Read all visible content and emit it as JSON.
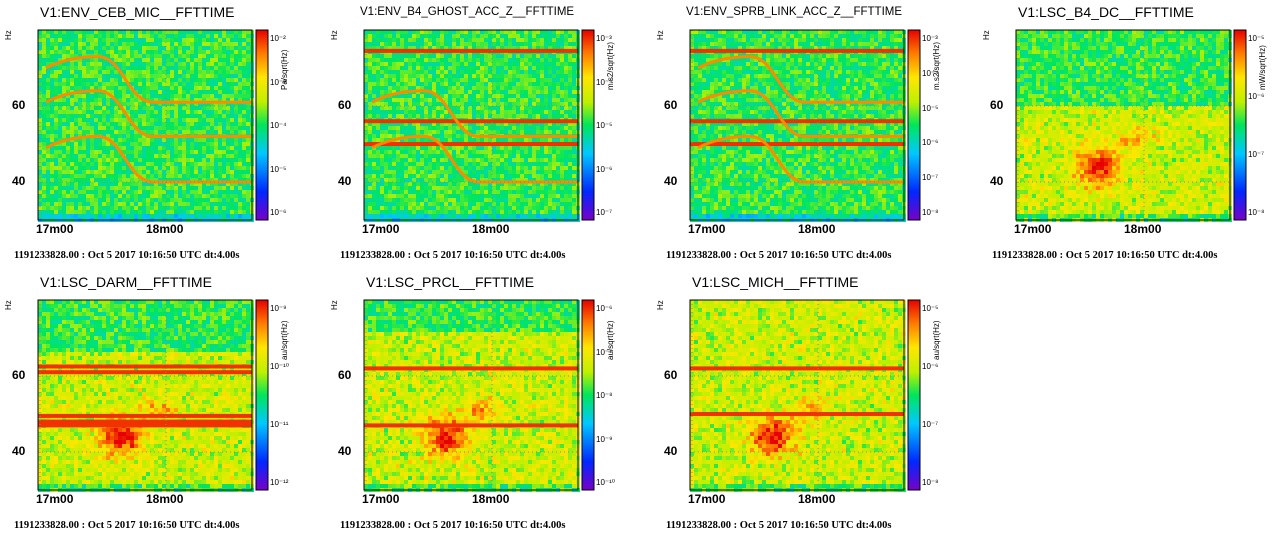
{
  "colors": {
    "background": "#ffffff",
    "frame": "#000000",
    "grid": "#888888"
  },
  "chart_data": [
    {
      "type": "heatmap",
      "title": "V1:ENV_CEB_MIC__FFTTIME",
      "ylabel": "Hz",
      "yticks": [
        "40",
        "60"
      ],
      "xticks": [
        "17m00",
        "18m00"
      ],
      "colorbar_unit": "Pa/sqrt(Hz)",
      "colorbar_ticks": [
        "10⁻⁶",
        "10⁻⁵",
        "10⁻⁴",
        "10⁻³",
        "10⁻²"
      ],
      "footer": "1191233828.00 : Oct  5 2017 10:16:50 UTC dt:4.00s",
      "features": {
        "lines": [],
        "chirps": [
          52,
          40,
          61
        ],
        "blob": false
      }
    },
    {
      "type": "heatmap",
      "title": "V1:ENV_B4_GHOST_ACC_Z__FFTTIME",
      "ylabel": "Hz",
      "yticks": [
        "40",
        "60"
      ],
      "xticks": [
        "17m00",
        "18m00"
      ],
      "colorbar_unit": "m.s2/sqrt(Hz)",
      "colorbar_ticks": [
        "10⁻⁷",
        "10⁻⁶",
        "10⁻⁵",
        "10⁻⁴",
        "10⁻³"
      ],
      "footer": "1191233828.00 : Oct  5 2017 10:16:50 UTC dt:4.00s",
      "features": {
        "lines": [
          50,
          56,
          74.5
        ],
        "chirps": [
          52,
          40
        ],
        "blob": false
      }
    },
    {
      "type": "heatmap",
      "title": "V1:ENV_SPRB_LINK_ACC_Z__FFTTIME",
      "ylabel": "Hz",
      "yticks": [
        "40",
        "60"
      ],
      "xticks": [
        "17m00",
        "18m00"
      ],
      "colorbar_unit": "m.s2/sqrt(Hz)",
      "colorbar_ticks": [
        "10⁻⁸",
        "10⁻⁷",
        "10⁻⁶",
        "10⁻⁵",
        "10⁻⁴",
        "10⁻³"
      ],
      "footer": "1191233828.00 : Oct  5 2017 10:16:50 UTC dt:4.00s",
      "features": {
        "lines": [
          50,
          56,
          74.5
        ],
        "chirps": [
          52,
          40,
          61
        ],
        "blob": false
      }
    },
    {
      "type": "heatmap",
      "title": "V1:LSC_B4_DC__FFTTIME",
      "ylabel": "Hz",
      "yticks": [
        "40",
        "60"
      ],
      "xticks": [
        "17m00",
        "18m00"
      ],
      "colorbar_unit": "mW/sqrt(Hz)",
      "colorbar_ticks": [
        "10⁻⁸",
        "10⁻⁷",
        "10⁻⁶",
        "10⁻⁵"
      ],
      "footer": "1191233828.00 : Oct  5 2017 10:16:50 UTC dt:4.00s",
      "features": {
        "lines": [],
        "chirps": [],
        "blob": true,
        "warm_below": 60
      }
    },
    {
      "type": "heatmap",
      "title": "V1:LSC_DARM__FFTTIME",
      "ylabel": "Hz",
      "yticks": [
        "40",
        "60"
      ],
      "xticks": [
        "17m00",
        "18m00"
      ],
      "colorbar_unit": "au/sqrt(Hz)",
      "colorbar_ticks": [
        "10⁻¹²",
        "10⁻¹¹",
        "10⁻¹⁰",
        "10⁻⁹"
      ],
      "footer": "1191233828.00 : Oct  5 2017 10:16:50 UTC dt:4.00s",
      "features": {
        "lines": [
          62.5,
          61,
          49.5,
          48,
          47
        ],
        "chirps": [],
        "blob": true,
        "warm_below": 66
      }
    },
    {
      "type": "heatmap",
      "title": "V1:LSC_PRCL__FFTTIME",
      "ylabel": "Hz",
      "yticks": [
        "40",
        "60"
      ],
      "xticks": [
        "17m00",
        "18m00"
      ],
      "colorbar_unit": "au/sqrt(Hz)",
      "colorbar_ticks": [
        "10⁻¹⁰",
        "10⁻⁹",
        "10⁻⁸",
        "10⁻⁷",
        "10⁻⁶"
      ],
      "footer": "1191233828.00 : Oct  5 2017 10:16:50 UTC dt:4.00s",
      "features": {
        "lines": [
          62,
          47
        ],
        "chirps": [],
        "blob": true,
        "warm_below": 72
      }
    },
    {
      "type": "heatmap",
      "title": "V1:LSC_MICH__FFTTIME",
      "ylabel": "Hz",
      "yticks": [
        "40",
        "60"
      ],
      "xticks": [
        "17m00",
        "18m00"
      ],
      "colorbar_unit": "au/sqrt(Hz)",
      "colorbar_ticks": [
        "10⁻⁸",
        "10⁻⁷",
        "10⁻⁶",
        "10⁻⁵"
      ],
      "footer": "1191233828.00 : Oct  5 2017 10:16:50 UTC dt:4.00s",
      "features": {
        "lines": [
          62,
          50
        ],
        "chirps": [],
        "blob": true,
        "warm_below": 80
      }
    }
  ]
}
